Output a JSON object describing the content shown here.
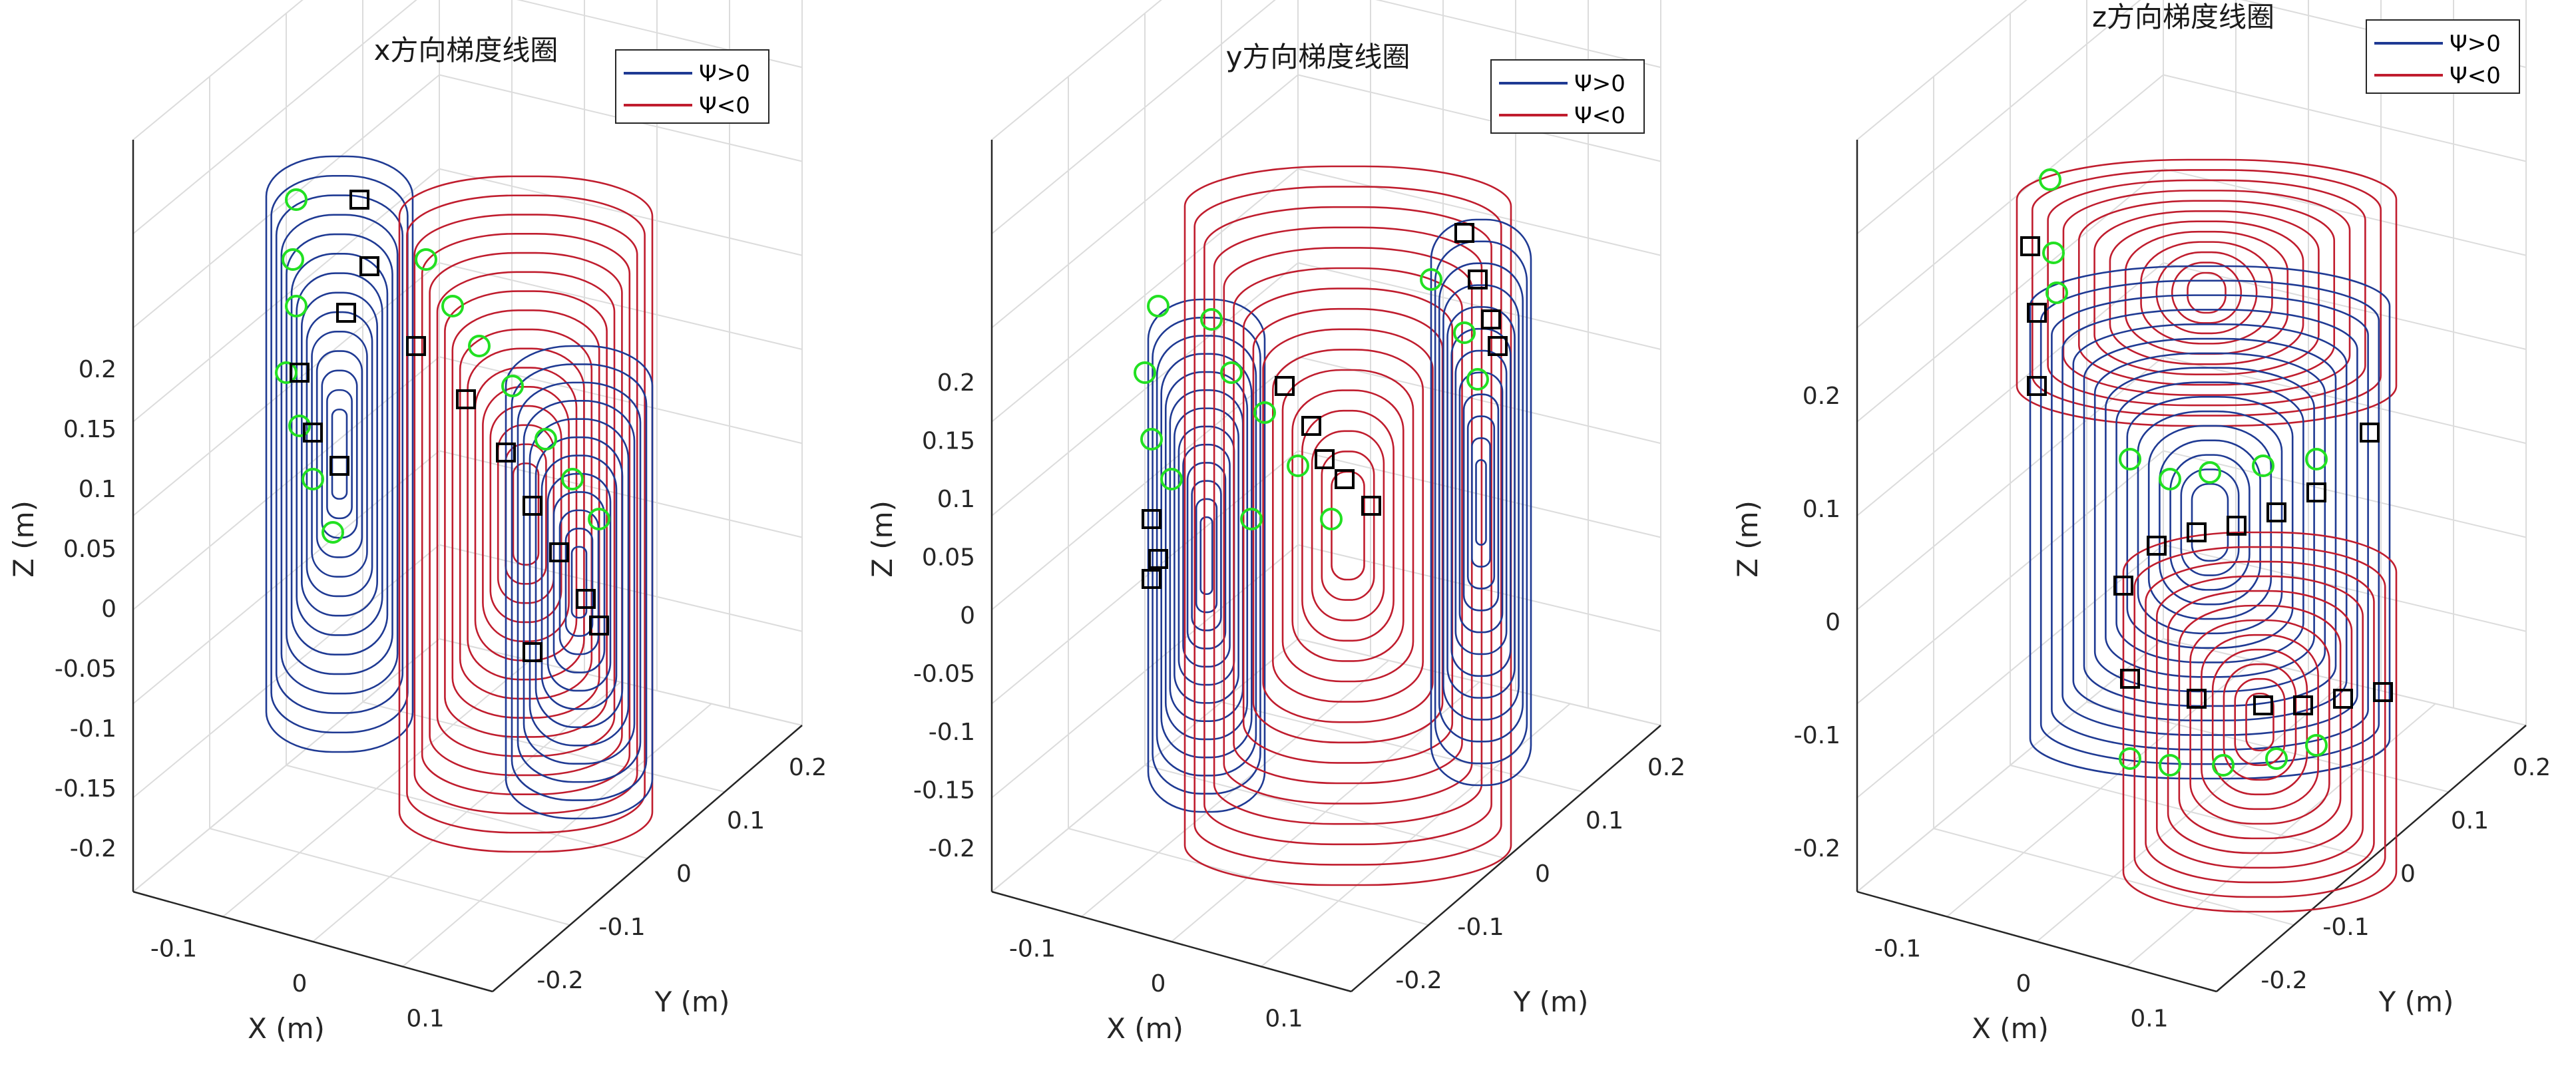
{
  "chart_data": [
    {
      "type": "line",
      "title": "x方向梯度线圈",
      "xlabel": "X (m)",
      "ylabel": "Y (m)",
      "zlabel": "Z (m)",
      "xlim": [
        -0.15,
        0.15
      ],
      "ylim": [
        -0.25,
        0.25
      ],
      "zlim": [
        -0.22,
        0.22
      ],
      "xticks": [
        "-0.1",
        "0",
        "0.1"
      ],
      "yticks": [
        "-0.2",
        "-0.1",
        "0",
        "0.1",
        "0.2"
      ],
      "zticks": [
        "-0.2",
        "-0.15",
        "-0.1",
        "-0.05",
        "0",
        "0.05",
        "0.1",
        "0.15",
        "0.2"
      ],
      "grid": true,
      "legend_position": "top-right",
      "series": [
        {
          "name": "Ψ>0",
          "color": "#1f3a93",
          "marker": "none"
        },
        {
          "name": "Ψ<0",
          "color": "#c01d2e",
          "marker": "none"
        }
      ],
      "markers": [
        {
          "shape": "circle",
          "color": "#22e022"
        },
        {
          "shape": "square",
          "color": "#000000"
        }
      ]
    },
    {
      "type": "line",
      "title": "y方向梯度线圈",
      "xlabel": "X (m)",
      "ylabel": "Y (m)",
      "zlabel": "Z (m)",
      "xlim": [
        -0.15,
        0.15
      ],
      "ylim": [
        -0.25,
        0.25
      ],
      "zlim": [
        -0.22,
        0.22
      ],
      "xticks": [
        "-0.1",
        "0",
        "0.1"
      ],
      "yticks": [
        "-0.2",
        "-0.1",
        "0",
        "0.1",
        "0.2"
      ],
      "zticks": [
        "-0.2",
        "-0.15",
        "-0.1",
        "-0.05",
        "0",
        "0.05",
        "0.1",
        "0.15",
        "0.2"
      ],
      "grid": true,
      "legend_position": "top-right",
      "series": [
        {
          "name": "Ψ>0",
          "color": "#1f3a93",
          "marker": "none"
        },
        {
          "name": "Ψ<0",
          "color": "#c01d2e",
          "marker": "none"
        }
      ],
      "markers": [
        {
          "shape": "circle",
          "color": "#22e022"
        },
        {
          "shape": "square",
          "color": "#000000"
        }
      ]
    },
    {
      "type": "line",
      "title": "z方向梯度线圈",
      "xlabel": "X (m)",
      "ylabel": "Y (m)",
      "zlabel": "Z (m)",
      "xlim": [
        -0.15,
        0.15
      ],
      "ylim": [
        -0.25,
        0.25
      ],
      "zlim": [
        -0.22,
        0.22
      ],
      "xticks": [
        "-0.1",
        "0",
        "0.1"
      ],
      "yticks": [
        "-0.2",
        "-0.1",
        "0",
        "0.1",
        "0.2"
      ],
      "zticks": [
        "-0.2",
        "-0.1",
        "0",
        "0.1",
        "0.2"
      ],
      "grid": true,
      "legend_position": "top-right",
      "series": [
        {
          "name": "Ψ>0",
          "color": "#1f3a93",
          "marker": "none"
        },
        {
          "name": "Ψ<0",
          "color": "#c01d2e",
          "marker": "none"
        }
      ],
      "markers": [
        {
          "shape": "circle",
          "color": "#22e022"
        },
        {
          "shape": "square",
          "color": "#000000"
        }
      ]
    }
  ]
}
